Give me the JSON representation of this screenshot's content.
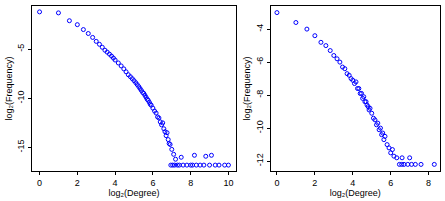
{
  "chart_data": [
    {
      "type": "scatter",
      "x_label": "log₂(Degree)",
      "y_label": "log₂(Frequency)",
      "color": "#0000ff",
      "marker": "open circle",
      "x": [
        0,
        1,
        1.58,
        2,
        2.32,
        2.58,
        2.81,
        3,
        3.17,
        3.32,
        3.46,
        3.58,
        3.7,
        3.81,
        3.91,
        4,
        4.17,
        4.32,
        4.46,
        4.58,
        4.7,
        4.81,
        4.91,
        5,
        5.09,
        5.17,
        5.25,
        5.32,
        5.39,
        5.46,
        5.52,
        5.58,
        5.64,
        5.7,
        5.75,
        5.81,
        5.86,
        5.91,
        6,
        6.09,
        6.17,
        6.25,
        6.32,
        6.39,
        6.46,
        6.52,
        6.58,
        6.64,
        6.7,
        6.75,
        6.81,
        6.86,
        6.91,
        7,
        7.1,
        7.2,
        7.5,
        8.2,
        8.8,
        9.1,
        6.95,
        7.05,
        7.15,
        7.3,
        7.4,
        7.6,
        7.8,
        8,
        8.1,
        8.3,
        8.5,
        8.7,
        9,
        9.3,
        9.5,
        9.8,
        10
      ],
      "values": [
        -1.2,
        -1.3,
        -2.1,
        -2.5,
        -3,
        -3.4,
        -3.8,
        -4.2,
        -4.5,
        -4.8,
        -5.1,
        -5.3,
        -5.5,
        -5.7,
        -5.9,
        -6.1,
        -6.4,
        -6.7,
        -7,
        -7.3,
        -7.6,
        -7.8,
        -8,
        -8.2,
        -8.4,
        -8.6,
        -8.8,
        -9,
        -9.2,
        -9.4,
        -9.5,
        -9.7,
        -9.9,
        -10.1,
        -10.2,
        -10.4,
        -10.6,
        -10.7,
        -11,
        -11.3,
        -11.5,
        -11.9,
        -12,
        -12.4,
        -12.7,
        -12.5,
        -13.1,
        -13.4,
        -13.8,
        -13.5,
        -14.2,
        -14.6,
        -14.7,
        -15.2,
        -15.7,
        -16.2,
        -16,
        -15.8,
        -15.9,
        -15.8,
        -16.8,
        -16.8,
        -16.8,
        -16.8,
        -16.8,
        -16.8,
        -16.8,
        -16.8,
        -16.8,
        -16.8,
        -16.8,
        -16.8,
        -16.8,
        -16.8,
        -16.8,
        -16.8,
        -16.8
      ],
      "xlim": [
        -0.4,
        10.4
      ],
      "ylim": [
        -17.4,
        -0.6
      ],
      "xticks": [
        0,
        2,
        4,
        6,
        8,
        10
      ],
      "yticks": [
        -15,
        -10,
        -5
      ]
    },
    {
      "type": "scatter",
      "x_label": "log₂(Degree)",
      "y_label": "log₂(Frequency)",
      "color": "#0000ff",
      "marker": "open circle",
      "x": [
        0,
        1,
        1.58,
        2,
        2.32,
        2.58,
        2.81,
        3,
        3.17,
        3.32,
        3.46,
        3.58,
        3.7,
        3.81,
        3.91,
        4,
        4.09,
        4.17,
        4.25,
        4.32,
        4.39,
        4.46,
        4.52,
        4.58,
        4.64,
        4.7,
        4.75,
        4.81,
        4.86,
        4.91,
        5,
        5.09,
        5.17,
        5.25,
        5.32,
        5.39,
        5.46,
        5.52,
        5.58,
        5.64,
        5.7,
        5.81,
        5.91,
        6,
        6.09,
        6.17,
        6.32,
        6.6,
        7,
        6.46,
        6.58,
        6.7,
        6.9,
        7.1,
        7.3,
        7.6,
        8.3
      ],
      "values": [
        -3,
        -3.6,
        -4,
        -4.4,
        -4.8,
        -5,
        -5.3,
        -5.6,
        -5.8,
        -6,
        -6.3,
        -6.4,
        -6.7,
        -6.8,
        -7,
        -7.1,
        -7.3,
        -7.2,
        -7.6,
        -7.6,
        -7.9,
        -7.9,
        -8.2,
        -8.1,
        -8.4,
        -8.4,
        -8.6,
        -8.7,
        -8.9,
        -8.8,
        -9.1,
        -9.4,
        -9.5,
        -9.8,
        -9.7,
        -10.1,
        -10,
        -10.4,
        -10.3,
        -10.7,
        -10.5,
        -11,
        -11.2,
        -11.5,
        -11.3,
        -11.7,
        -11.8,
        -11.8,
        -11.8,
        -12.2,
        -12.2,
        -12.2,
        -12.2,
        -12.2,
        -12.2,
        -12.2,
        -12.2
      ],
      "xlim": [
        -0.33,
        8.6
      ],
      "ylim": [
        -12.6,
        -2.6
      ],
      "xticks": [
        0,
        2,
        4,
        6,
        8
      ],
      "yticks": [
        -12,
        -10,
        -8,
        -6,
        -4
      ]
    }
  ]
}
